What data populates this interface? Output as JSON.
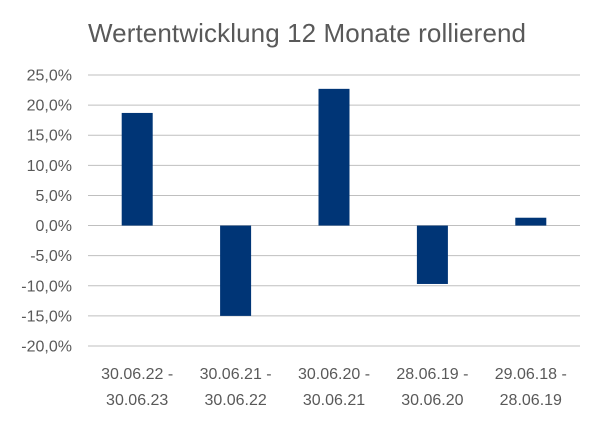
{
  "chart_data": {
    "type": "bar",
    "title": "Wertentwicklung 12 Monate rollierend",
    "xlabel": "",
    "ylabel": "",
    "categories": [
      [
        "30.06.22 -",
        "30.06.23"
      ],
      [
        "30.06.21 -",
        "30.06.22"
      ],
      [
        "30.06.20 -",
        "30.06.21"
      ],
      [
        "28.06.19 -",
        "30.06.20"
      ],
      [
        "29.06.18 -",
        "28.06.19"
      ]
    ],
    "series": [
      {
        "values": [
          18.7,
          -15.0,
          22.7,
          -9.7,
          1.3
        ]
      }
    ],
    "ylim": [
      -20,
      25
    ],
    "yticks": [
      25,
      20,
      15,
      10,
      5,
      0,
      -5,
      -10,
      -15,
      -20
    ],
    "ytick_labels": [
      "25,0%",
      "20,0%",
      "15,0%",
      "10,0%",
      "5,0%",
      "0,0%",
      "-5,0%",
      "-10,0%",
      "-15,0%",
      "-20,0%"
    ],
    "grid": true,
    "legend": "none",
    "colors": {
      "bar": "#003576",
      "grid": "#bfbfbf",
      "text": "#595959"
    }
  }
}
